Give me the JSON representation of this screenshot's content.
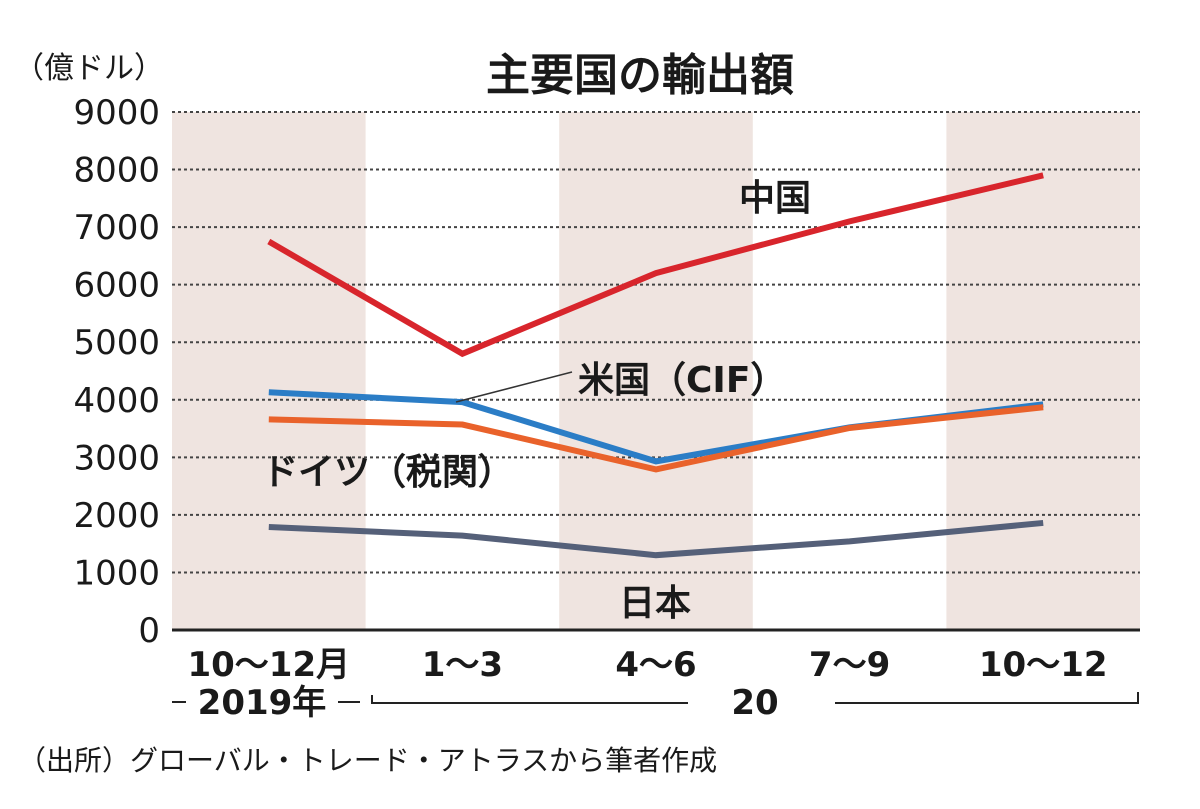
{
  "chart_data": {
    "type": "line",
    "title": "主要国の輸出額",
    "unit_label": "（億ドル）",
    "unit_main": "（億",
    "unit_small": "ドル",
    "unit_close": "）",
    "ylabel": "億ドル",
    "xlabel": "",
    "ylim": [
      0,
      9000
    ],
    "yticks": [
      "0",
      "1000",
      "2000",
      "3000",
      "4000",
      "5000",
      "6000",
      "7000",
      "8000",
      "9000"
    ],
    "grid": true,
    "categories": [
      "10〜12月",
      "1〜3",
      "4〜6",
      "7〜9",
      "10〜12"
    ],
    "year_labels": {
      "first": "2019年",
      "second": "20"
    },
    "series": [
      {
        "name": "中国",
        "color": "#d8252c",
        "values": [
          6750,
          4800,
          6200,
          7100,
          7900
        ]
      },
      {
        "name": "米国（CIF）",
        "color": "#2b7dc6",
        "values": [
          4130,
          3960,
          2930,
          3520,
          3920
        ]
      },
      {
        "name": "ドイツ（税関）",
        "color": "#e9622b",
        "values": [
          3660,
          3570,
          2790,
          3510,
          3870
        ]
      },
      {
        "name": "日本",
        "color": "#556079",
        "values": [
          1790,
          1640,
          1300,
          1540,
          1860
        ]
      }
    ],
    "legend": "inline labels",
    "source": "（出所）グローバル・トレード・アトラスから筆者作成"
  }
}
